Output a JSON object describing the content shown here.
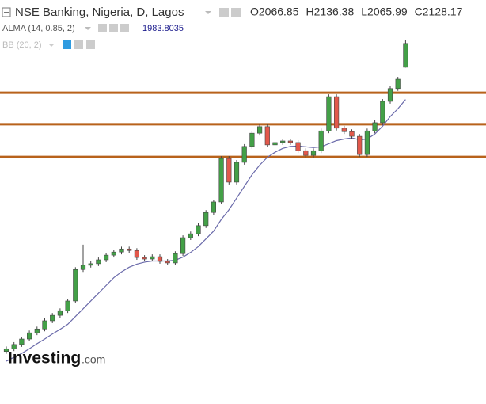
{
  "chart_data": {
    "type": "candlestick",
    "title": "NSE Banking, Nigeria, D, Lagos",
    "ohlc_labels": [
      "O",
      "H",
      "L",
      "C"
    ],
    "open": [
      1335,
      1342,
      1353,
      1367,
      1383,
      1393,
      1414,
      1428,
      1440,
      1465,
      1546,
      1557,
      1561,
      1571,
      1583,
      1591,
      1599,
      1595,
      1577,
      1573,
      1579,
      1567,
      1563,
      1587,
      1628,
      1638,
      1659,
      1693,
      1720,
      1832,
      1771,
      1822,
      1863,
      1897,
      1914,
      1867,
      1873,
      1877,
      1873,
      1852,
      1840,
      1852,
      1903,
      1991,
      1910,
      1901,
      1889,
      1842,
      1903,
      1924,
      1979,
      2012,
      2066.85
    ],
    "high": [
      1348,
      1359,
      1373,
      1389,
      1399,
      1420,
      1434,
      1446,
      1471,
      1552,
      1610,
      1567,
      1577,
      1589,
      1597,
      1605,
      1605,
      1601,
      1583,
      1585,
      1585,
      1573,
      1593,
      1634,
      1644,
      1665,
      1699,
      1726,
      1838,
      1838,
      1828,
      1869,
      1903,
      1920,
      1920,
      1879,
      1883,
      1883,
      1879,
      1858,
      1858,
      1909,
      1997,
      1997,
      1916,
      1907,
      1895,
      1909,
      1930,
      1985,
      2018,
      2042,
      2136.38
    ],
    "low": [
      1329,
      1336,
      1347,
      1361,
      1377,
      1387,
      1408,
      1422,
      1434,
      1459,
      1540,
      1551,
      1555,
      1565,
      1577,
      1585,
      1589,
      1571,
      1567,
      1567,
      1561,
      1557,
      1557,
      1581,
      1622,
      1632,
      1653,
      1687,
      1714,
      1765,
      1765,
      1816,
      1857,
      1891,
      1861,
      1861,
      1867,
      1867,
      1846,
      1834,
      1834,
      1846,
      1897,
      1904,
      1895,
      1883,
      1836,
      1836,
      1897,
      1918,
      1973,
      2006,
      2065.99
    ],
    "close": [
      1342,
      1353,
      1367,
      1383,
      1393,
      1414,
      1428,
      1440,
      1465,
      1546,
      1557,
      1561,
      1571,
      1583,
      1591,
      1599,
      1595,
      1577,
      1573,
      1579,
      1567,
      1563,
      1587,
      1628,
      1638,
      1659,
      1693,
      1720,
      1832,
      1771,
      1822,
      1863,
      1897,
      1914,
      1867,
      1873,
      1877,
      1873,
      1852,
      1840,
      1852,
      1903,
      1991,
      1910,
      1901,
      1889,
      1842,
      1903,
      1924,
      1979,
      2012,
      2036,
      2128.17
    ],
    "up_color": "#43a047",
    "down_color": "#e2584b",
    "indicators": [
      {
        "label": "ALMA (14, 0.85, 2)",
        "color": "#6a6aaa",
        "values": [
          1310,
          1320,
          1330,
          1342,
          1355,
          1367,
          1380,
          1392,
          1405,
          1425,
          1445,
          1465,
          1485,
          1505,
          1525,
          1540,
          1552,
          1560,
          1565,
          1568,
          1568,
          1568,
          1570,
          1578,
          1590,
          1605,
          1625,
          1645,
          1675,
          1700,
          1730,
          1760,
          1790,
          1815,
          1835,
          1848,
          1858,
          1863,
          1864,
          1862,
          1860,
          1862,
          1870,
          1878,
          1882,
          1885,
          1880,
          1882,
          1895,
          1915,
          1940,
          1960,
          1983.8035
        ]
      }
    ],
    "bb_label": "BB (20, 2)",
    "levels": [
      {
        "value": 2001,
        "color": "#b8621b"
      },
      {
        "value": 1920,
        "color": "#b8621b"
      },
      {
        "value": 1836,
        "color": "#b8621b"
      }
    ],
    "ylim": [
      1210,
      2240
    ],
    "logo": "Investing",
    "logo_suffix": ".com"
  }
}
